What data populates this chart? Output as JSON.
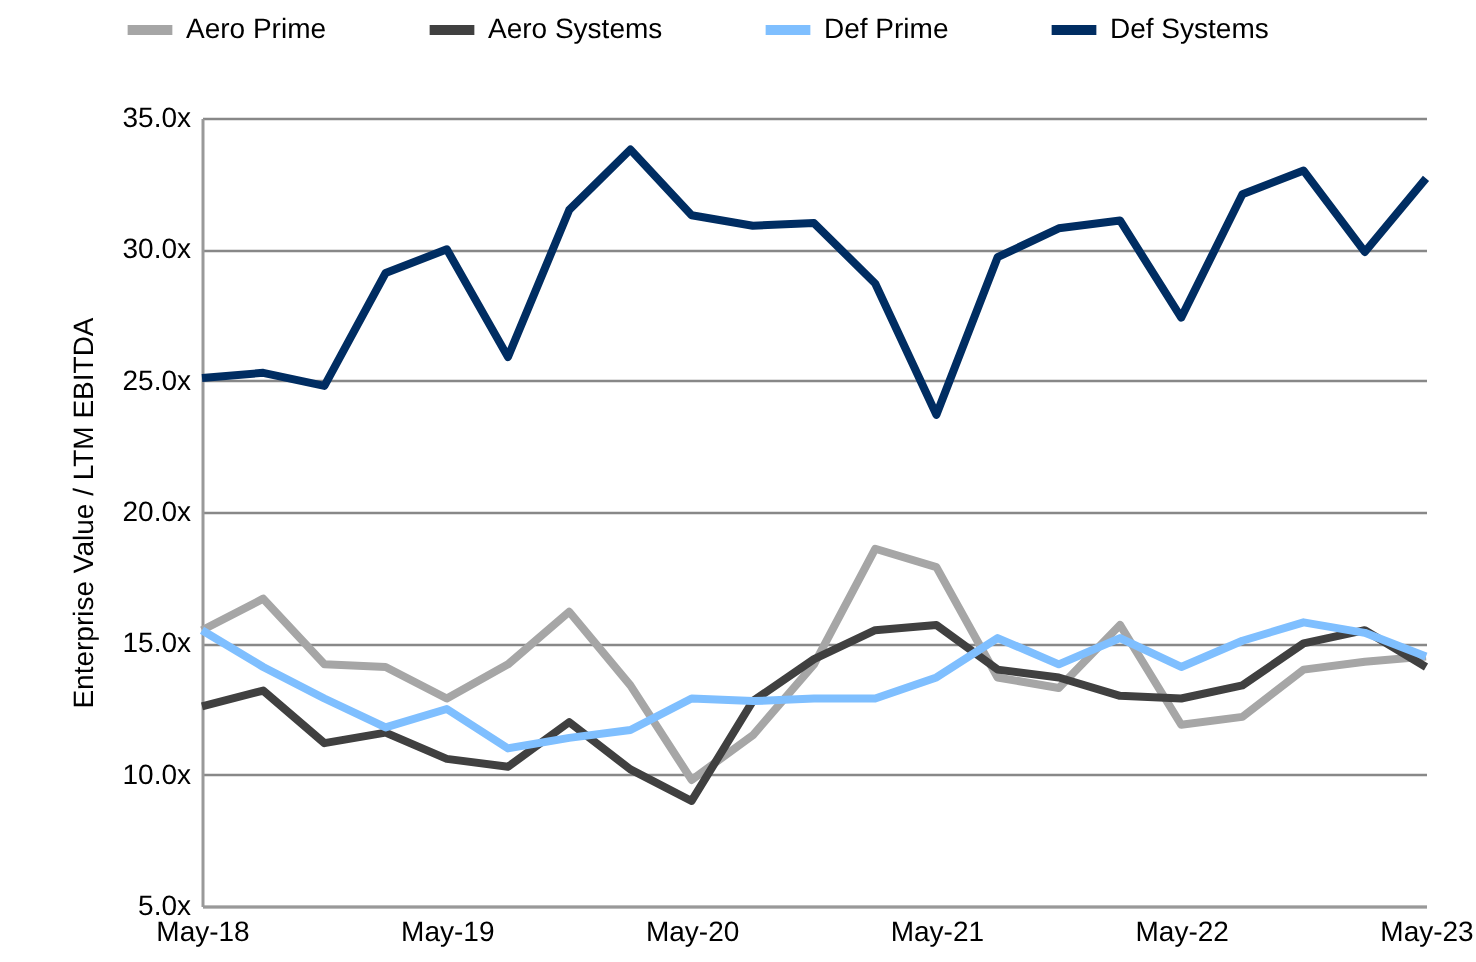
{
  "chart_data": {
    "type": "line",
    "ylabel": "Enterprise Value / LTM EBITDA",
    "categories": [
      "May-18",
      null,
      null,
      null,
      "May-19",
      null,
      null,
      null,
      "May-20",
      null,
      null,
      null,
      "May-21",
      null,
      null,
      null,
      "May-22",
      null,
      null,
      null,
      "May-23"
    ],
    "series": [
      {
        "name": "Aero Prime",
        "color": "#a6a6a6",
        "values": [
          15.5,
          16.7,
          14.2,
          14.1,
          12.9,
          14.2,
          16.2,
          13.4,
          9.8,
          11.5,
          14.2,
          18.6,
          17.9,
          13.7,
          13.3,
          15.7,
          11.9,
          12.2,
          14.0,
          14.3,
          14.5
        ]
      },
      {
        "name": "Aero Systems",
        "color": "#404040",
        "values": [
          12.6,
          13.2,
          11.2,
          11.6,
          10.6,
          10.3,
          12.0,
          10.2,
          9.0,
          12.8,
          14.4,
          15.5,
          15.7,
          14.0,
          13.7,
          13.0,
          12.9,
          13.4,
          15.0,
          15.5,
          14.1
        ]
      },
      {
        "name": "Def Prime",
        "color": "#7fbfff",
        "values": [
          15.5,
          14.1,
          12.9,
          11.8,
          12.5,
          11.0,
          11.4,
          11.7,
          12.9,
          12.8,
          12.9,
          12.9,
          13.7,
          15.2,
          14.2,
          15.2,
          14.1,
          15.1,
          15.8,
          15.4,
          14.5
        ]
      },
      {
        "name": "Def Systems",
        "color": "#002d62",
        "values": [
          25.1,
          25.3,
          24.8,
          29.1,
          30.0,
          25.9,
          31.5,
          33.8,
          31.3,
          30.9,
          31.0,
          28.7,
          23.7,
          29.7,
          30.8,
          31.1,
          27.4,
          32.1,
          33.0,
          29.9,
          32.7
        ]
      }
    ],
    "ylim": [
      5,
      35
    ],
    "yticks": [
      {
        "value": 5,
        "label": "5.0x"
      },
      {
        "value": 10,
        "label": "10.0x"
      },
      {
        "value": 15,
        "label": "15.0x"
      },
      {
        "value": 20,
        "label": "20.0x"
      },
      {
        "value": 25,
        "label": "25.0x"
      },
      {
        "value": 30,
        "label": "30.0x"
      },
      {
        "value": 35,
        "label": "35.0x"
      }
    ],
    "grid": "y",
    "legend": "top",
    "marker": "none",
    "line_style": "solid"
  }
}
